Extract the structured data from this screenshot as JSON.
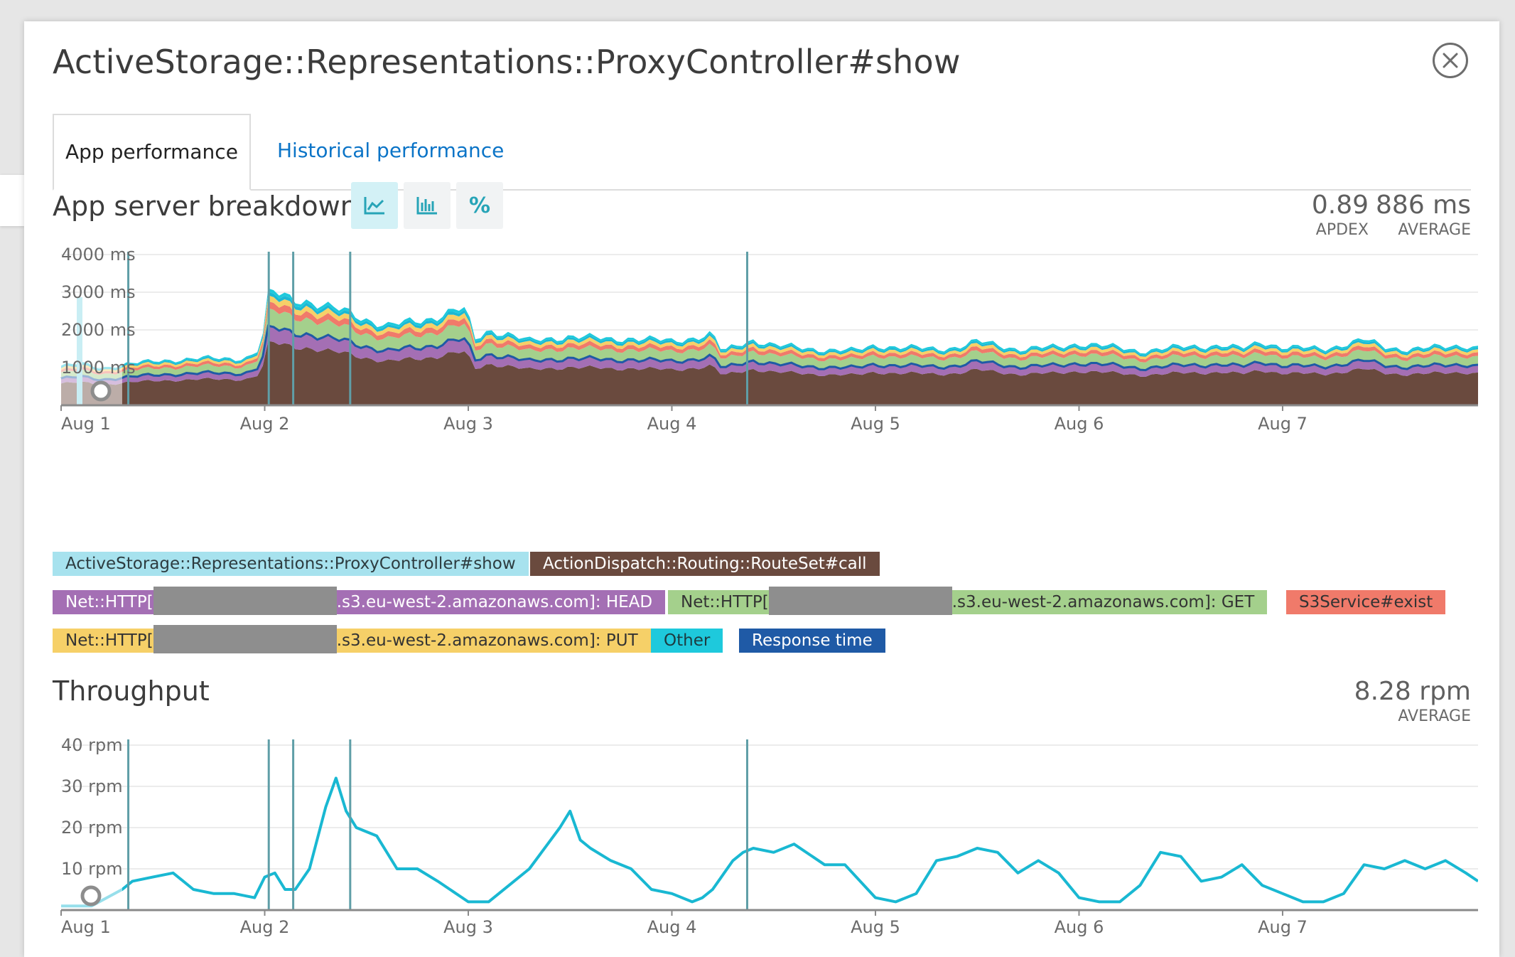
{
  "modal": {
    "title": "ActiveStorage::Representations::ProxyController#show",
    "close_icon": "close-circle-icon"
  },
  "tabs": [
    {
      "label": "App performance",
      "active": true
    },
    {
      "label": "Historical performance",
      "active": false
    }
  ],
  "breakdown": {
    "title": "App server breakdown",
    "view_buttons": [
      {
        "icon": "area-chart-icon",
        "active": true
      },
      {
        "icon": "bar-chart-icon",
        "active": false
      },
      {
        "label": "%",
        "active": false
      }
    ],
    "apdex": {
      "value": "0.89",
      "label": "APDEX"
    },
    "average": {
      "value": "886 ms",
      "label": "AVERAGE"
    },
    "legend": [
      {
        "label": "ActiveStorage::Representations::ProxyController#show",
        "color": "#1bb8d4"
      },
      {
        "label": "ActionDispatch::Routing::RouteSet#call",
        "color": "#6a4a3e"
      },
      {
        "label_pre": "Net::HTTP[",
        "label_post": ".s3.eu-west-2.amazonaws.com]: HEAD",
        "color": "#a46fb4"
      },
      {
        "label_pre": "Net::HTTP[",
        "label_post": ".s3.eu-west-2.amazonaws.com]: GET",
        "color": "#a4d08c"
      },
      {
        "label": "S3Service#exist",
        "color": "#f07a6a"
      },
      {
        "label_pre": "Net::HTTP[",
        "label_post": ".s3.eu-west-2.amazonaws.com]: PUT",
        "color": "#f6d068"
      },
      {
        "label": "Other",
        "color": "#1ec9dc"
      },
      {
        "label": "Response time",
        "color": "#1f5aa6"
      }
    ]
  },
  "throughput": {
    "title": "Throughput",
    "average": {
      "value": "8.28 rpm",
      "label": "AVERAGE"
    }
  },
  "chart_data": [
    {
      "type": "area",
      "title": "App server breakdown",
      "y_unit": "ms",
      "ylim": [
        0,
        4000
      ],
      "y_ticks": [
        "4000 ms",
        "3000 ms",
        "2000 ms",
        "1000 ms"
      ],
      "x_ticks": [
        "Aug 1",
        "Aug 2",
        "Aug 3",
        "Aug 4",
        "Aug 5",
        "Aug 6",
        "Aug 7"
      ],
      "x_range_days": [
        1.0,
        7.96
      ],
      "deploy_markers_days": [
        1.33,
        2.02,
        2.14,
        2.42,
        4.37
      ],
      "grid": true,
      "total_profile": {
        "x": [
          1.0,
          1.1,
          1.2,
          1.33,
          1.5,
          1.7,
          1.9,
          1.96,
          2.0,
          2.02,
          2.1,
          2.2,
          2.3,
          2.4,
          2.6,
          2.8,
          2.95,
          3.0,
          3.02,
          3.05,
          3.1,
          3.2,
          3.3,
          3.5,
          3.7,
          3.8,
          4.0,
          4.2,
          4.25,
          4.3,
          4.4,
          4.5,
          4.7,
          4.9,
          5.0,
          5.1,
          5.3,
          5.4,
          5.5,
          5.7,
          5.9,
          6.0,
          6.1,
          6.3,
          6.5,
          6.7,
          6.8,
          6.9,
          7.0,
          7.2,
          7.4,
          7.5,
          7.6,
          7.8,
          7.9,
          7.96
        ],
        "y": [
          1050,
          1100,
          1000,
          1100,
          1200,
          1250,
          1250,
          1400,
          2000,
          3050,
          2900,
          2800,
          2600,
          2500,
          2100,
          2300,
          2550,
          2500,
          1700,
          1800,
          2000,
          1900,
          1700,
          1850,
          1750,
          1800,
          1700,
          1900,
          1400,
          1550,
          1750,
          1600,
          1500,
          1450,
          1600,
          1550,
          1500,
          1550,
          1700,
          1500,
          1550,
          1650,
          1600,
          1450,
          1550,
          1600,
          1500,
          1700,
          1550,
          1500,
          1750,
          1550,
          1500,
          1550,
          1600,
          1550
        ]
      },
      "series": [
        {
          "name": "ActionDispatch::Routing::RouteSet#call",
          "share": 0.55
        },
        {
          "name": "Net::HTTP[…s3.eu-west-2.amazonaws.com]: HEAD",
          "share": 0.13
        },
        {
          "name": "Net::HTTP[…s3.eu-west-2.amazonaws.com]: GET",
          "share": 0.15
        },
        {
          "name": "S3Service#exist",
          "share": 0.06
        },
        {
          "name": "Net::HTTP[…s3.eu-west-2.amazonaws.com]: PUT",
          "share": 0.05
        },
        {
          "name": "ActiveStorage::Representations::ProxyController#show",
          "share": 0.03
        },
        {
          "name": "Other",
          "share": 0.03
        }
      ],
      "response_time_share": 0.68
    },
    {
      "type": "line",
      "title": "Throughput",
      "y_unit": "rpm",
      "ylim": [
        0,
        40
      ],
      "y_ticks": [
        "40 rpm",
        "30 rpm",
        "20 rpm",
        "10 rpm"
      ],
      "x_ticks": [
        "Aug 1",
        "Aug 2",
        "Aug 3",
        "Aug 4",
        "Aug 5",
        "Aug 6",
        "Aug 7"
      ],
      "x_range_days": [
        1.0,
        7.96
      ],
      "deploy_markers_days": [
        1.33,
        2.02,
        2.14,
        2.42,
        4.37
      ],
      "grid": true,
      "x": [
        1.0,
        1.15,
        1.3,
        1.35,
        1.45,
        1.55,
        1.65,
        1.75,
        1.85,
        1.95,
        2.0,
        2.05,
        2.1,
        2.15,
        2.22,
        2.3,
        2.35,
        2.4,
        2.45,
        2.55,
        2.65,
        2.75,
        2.85,
        3.0,
        3.1,
        3.2,
        3.3,
        3.45,
        3.5,
        3.55,
        3.6,
        3.7,
        3.8,
        3.9,
        4.0,
        4.1,
        4.15,
        4.2,
        4.3,
        4.35,
        4.4,
        4.5,
        4.6,
        4.75,
        4.85,
        5.0,
        5.1,
        5.2,
        5.3,
        5.4,
        5.5,
        5.6,
        5.7,
        5.8,
        5.9,
        6.0,
        6.1,
        6.2,
        6.3,
        6.4,
        6.5,
        6.6,
        6.7,
        6.8,
        6.9,
        7.0,
        7.1,
        7.2,
        7.3,
        7.4,
        7.5,
        7.6,
        7.7,
        7.8,
        7.9,
        7.96
      ],
      "values": [
        1,
        1,
        5,
        7,
        8,
        9,
        5,
        4,
        4,
        3,
        8,
        9,
        5,
        5,
        10,
        25,
        32,
        24,
        20,
        18,
        10,
        10,
        7,
        2,
        2,
        6,
        10,
        20,
        24,
        17,
        15,
        12,
        10,
        5,
        4,
        2,
        3,
        5,
        12,
        14,
        15,
        14,
        16,
        11,
        11,
        3,
        2,
        4,
        12,
        13,
        15,
        14,
        9,
        12,
        9,
        3,
        2,
        2,
        6,
        14,
        13,
        7,
        8,
        11,
        6,
        4,
        2,
        2,
        4,
        11,
        10,
        12,
        10,
        12,
        9,
        7
      ]
    }
  ]
}
